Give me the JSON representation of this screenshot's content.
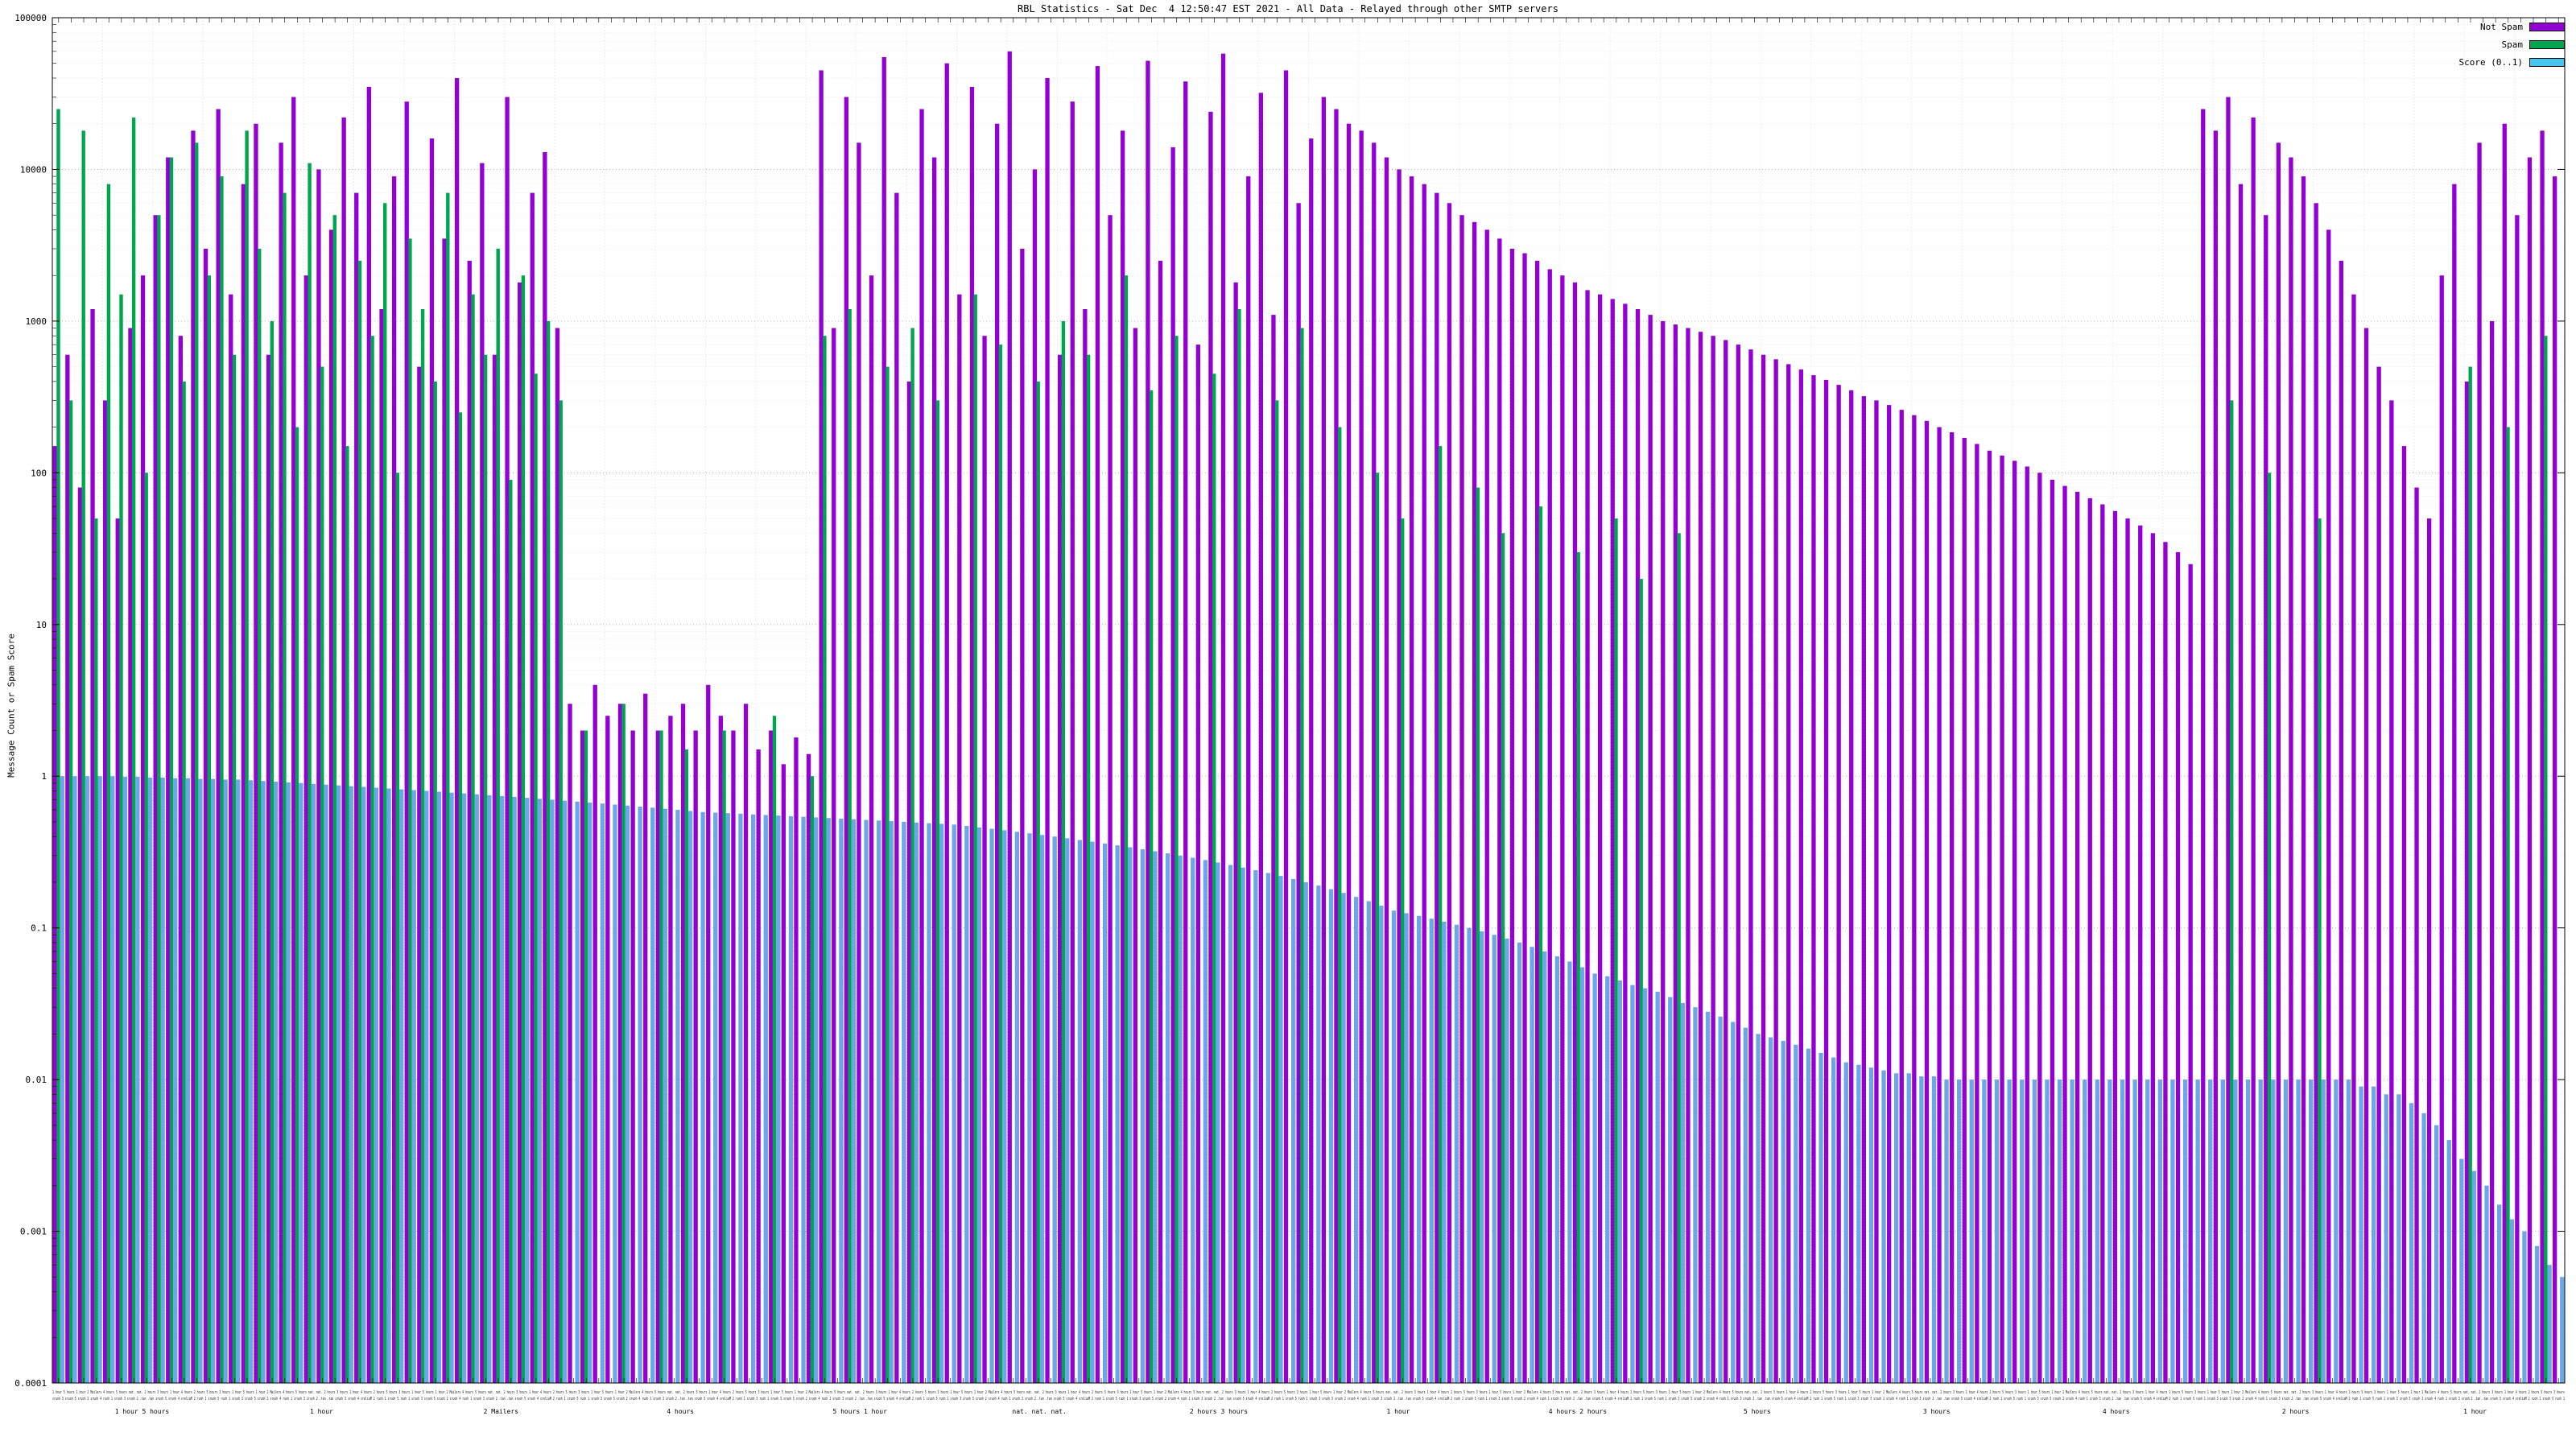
{
  "page": {
    "background": "#ffffff"
  },
  "chart_data": {
    "type": "bar",
    "title": "RBL Statistics - Sat Dec  4 12:50:47 EST 2021 - All Data - Relayed through other SMTP servers",
    "ylabel": "Message Count or Spam Score",
    "yscale": "log",
    "ylim": [
      0.0001,
      100000
    ],
    "yticks": [
      "100000",
      "10000",
      "1000",
      "100",
      "10",
      "1",
      "0.1",
      "0.01",
      "0.001",
      "0.0001"
    ],
    "ytick_values": [
      100000,
      10000,
      1000,
      100,
      10,
      1,
      0.1,
      0.01,
      0.001,
      0.0001
    ],
    "grid": true,
    "legend": {
      "position": "top-right",
      "entries": [
        {
          "label": "Not Spam",
          "color": "#9400d3"
        },
        {
          "label": "Spam",
          "color": "#00a550"
        },
        {
          "label": "Score (0..1)",
          "color": "#45c5ef"
        }
      ]
    },
    "series": [
      {
        "name": "Not Spam",
        "color": "#9400d3",
        "values": [
          150,
          600,
          80,
          1200,
          300,
          50,
          900,
          2000,
          5000,
          12000,
          800,
          18000,
          3000,
          25000,
          1500,
          8000,
          20000,
          600,
          15000,
          30000,
          2000,
          10000,
          4000,
          22000,
          7000,
          35000,
          1200,
          9000,
          28000,
          500,
          16000,
          3500,
          40000,
          2500,
          11000,
          600,
          30000,
          1800,
          7000,
          13000,
          900,
          3,
          2,
          4,
          2.5,
          3,
          2,
          3.5,
          2,
          2.5,
          3,
          2,
          4,
          2.5,
          2,
          3,
          1.5,
          2,
          1.2,
          1.8,
          1.4,
          45000,
          900,
          30000,
          15000,
          2000,
          55000,
          7000,
          400,
          25000,
          12000,
          50000,
          1500,
          35000,
          800,
          20000,
          60000,
          3000,
          10000,
          40000,
          600,
          28000,
          1200,
          48000,
          5000,
          18000,
          900,
          52000,
          2500,
          14000,
          38000,
          700,
          24000,
          58000,
          1800,
          9000,
          32000,
          1100,
          45000,
          6000,
          16000,
          30000,
          25000,
          20000,
          18000,
          15000,
          12000,
          10000,
          9000,
          8000,
          7000,
          6000,
          5000,
          4500,
          4000,
          3500,
          3000,
          2800,
          2500,
          2200,
          2000,
          1800,
          1600,
          1500,
          1400,
          1300,
          1200,
          1100,
          1000,
          950,
          900,
          850,
          800,
          750,
          700,
          650,
          600,
          560,
          520,
          480,
          440,
          410,
          380,
          350,
          320,
          300,
          280,
          260,
          240,
          220,
          200,
          185,
          170,
          155,
          140,
          130,
          120,
          110,
          100,
          90,
          82,
          75,
          68,
          62,
          56,
          50,
          45,
          40,
          35,
          30,
          25,
          25000,
          18000,
          30000,
          8000,
          22000,
          5000,
          15000,
          12000,
          9000,
          6000,
          4000,
          2500,
          1500,
          900,
          500,
          300,
          150,
          80,
          50,
          2000,
          8000,
          400,
          15000,
          1000,
          20000,
          5000,
          12000,
          18000,
          9000
        ]
      },
      {
        "name": "Spam",
        "color": "#00a550",
        "values": [
          25000,
          300,
          18000,
          50,
          8000,
          1500,
          22000,
          100,
          5000,
          12000,
          400,
          15000,
          2000,
          9000,
          600,
          18000,
          3000,
          1000,
          7000,
          200,
          11000,
          500,
          5000,
          150,
          2500,
          800,
          6000,
          100,
          3500,
          1200,
          400,
          7000,
          250,
          1500,
          600,
          3000,
          90,
          2000,
          450,
          1000,
          300,
          0,
          2,
          0,
          0,
          3,
          0,
          0,
          2,
          0,
          1.5,
          0,
          0,
          2,
          0,
          0,
          0,
          2.5,
          0,
          0,
          1,
          800,
          0,
          1200,
          0,
          0,
          500,
          0,
          900,
          0,
          300,
          0,
          0,
          1500,
          0,
          700,
          0,
          0,
          400,
          0,
          1000,
          0,
          600,
          0,
          0,
          2000,
          0,
          350,
          0,
          800,
          0,
          0,
          450,
          0,
          1200,
          0,
          0,
          300,
          0,
          900,
          0,
          0,
          200,
          0,
          0,
          100,
          0,
          50,
          0,
          0,
          150,
          0,
          0,
          80,
          0,
          40,
          0,
          0,
          60,
          0,
          0,
          30,
          0,
          0,
          50,
          0,
          20,
          0,
          0,
          40,
          0,
          0,
          0,
          0,
          0,
          0,
          0,
          0,
          0,
          0,
          0,
          0,
          0,
          0,
          0,
          0,
          0,
          0,
          0,
          0,
          0,
          0,
          0,
          0,
          0,
          0,
          0,
          0,
          0,
          0,
          0,
          0,
          0,
          0,
          0,
          0,
          0,
          0,
          0,
          0,
          0,
          0,
          0,
          300,
          0,
          0,
          100,
          0,
          0,
          0,
          50,
          0,
          0,
          0,
          0,
          0,
          0,
          0,
          0,
          0,
          0,
          0,
          500,
          0,
          0,
          200,
          0,
          0,
          800,
          0
        ]
      },
      {
        "name": "Score (0..1)",
        "color": "#6aa6e8",
        "values": [
          1.0,
          1.0,
          1.0,
          1.0,
          1.0,
          0.99,
          0.99,
          0.98,
          0.98,
          0.97,
          0.97,
          0.96,
          0.96,
          0.95,
          0.95,
          0.94,
          0.93,
          0.92,
          0.91,
          0.9,
          0.89,
          0.88,
          0.87,
          0.86,
          0.85,
          0.84,
          0.83,
          0.82,
          0.81,
          0.8,
          0.79,
          0.78,
          0.77,
          0.76,
          0.75,
          0.74,
          0.73,
          0.72,
          0.71,
          0.7,
          0.69,
          0.68,
          0.67,
          0.66,
          0.65,
          0.64,
          0.63,
          0.62,
          0.61,
          0.6,
          0.59,
          0.58,
          0.575,
          0.57,
          0.565,
          0.56,
          0.555,
          0.55,
          0.545,
          0.54,
          0.535,
          0.53,
          0.525,
          0.52,
          0.515,
          0.51,
          0.505,
          0.5,
          0.495,
          0.49,
          0.485,
          0.48,
          0.47,
          0.46,
          0.45,
          0.44,
          0.43,
          0.42,
          0.41,
          0.4,
          0.39,
          0.38,
          0.37,
          0.36,
          0.35,
          0.34,
          0.33,
          0.32,
          0.31,
          0.3,
          0.29,
          0.28,
          0.27,
          0.26,
          0.25,
          0.24,
          0.23,
          0.22,
          0.21,
          0.2,
          0.19,
          0.18,
          0.17,
          0.16,
          0.15,
          0.14,
          0.13,
          0.125,
          0.12,
          0.115,
          0.11,
          0.105,
          0.1,
          0.095,
          0.09,
          0.085,
          0.08,
          0.075,
          0.07,
          0.065,
          0.06,
          0.055,
          0.05,
          0.048,
          0.045,
          0.042,
          0.04,
          0.038,
          0.035,
          0.032,
          0.03,
          0.028,
          0.026,
          0.024,
          0.022,
          0.02,
          0.019,
          0.018,
          0.017,
          0.016,
          0.015,
          0.014,
          0.013,
          0.0125,
          0.012,
          0.0115,
          0.011,
          0.011,
          0.0105,
          0.0105,
          0.01,
          0.01,
          0.01,
          0.01,
          0.01,
          0.01,
          0.01,
          0.01,
          0.01,
          0.01,
          0.01,
          0.01,
          0.01,
          0.01,
          0.01,
          0.01,
          0.01,
          0.01,
          0.01,
          0.01,
          0.01,
          0.01,
          0.01,
          0.01,
          0.01,
          0.01,
          0.01,
          0.01,
          0.01,
          0.01,
          0.01,
          0.01,
          0.01,
          0.009,
          0.009,
          0.008,
          0.008,
          0.007,
          0.006,
          0.005,
          0.004,
          0.003,
          0.0025,
          0.002,
          0.0015,
          0.0012,
          0.001,
          0.0008,
          0.0006,
          0.0005
        ]
      }
    ],
    "x_axis": {
      "dense_label_fragments": [
        "1 hour",
        "5 hours",
        "1 hour",
        "2 Mailers",
        "4 hours",
        "5 hours",
        "nat. nat.",
        "2 hours",
        "3 hours",
        "1 hour",
        "4 hours",
        "2 hours",
        "5 hours",
        "3 hours"
      ],
      "sparse_labels": [
        "1 hour  5 hours",
        "1 hour",
        "2 Mailers",
        "4 hours",
        "5 hours  1 hour",
        "nat. nat. nat.",
        "2 hours  3 hours",
        "1 hour",
        "4 hours  2 hours",
        "5 hours",
        "3 hours",
        "4 hours",
        "2 hours",
        "1 hour"
      ]
    },
    "style_colors": {
      "grid_major": "#b4b4b4",
      "grid_minor": "#e6e6e6",
      "border": "#000000"
    }
  }
}
